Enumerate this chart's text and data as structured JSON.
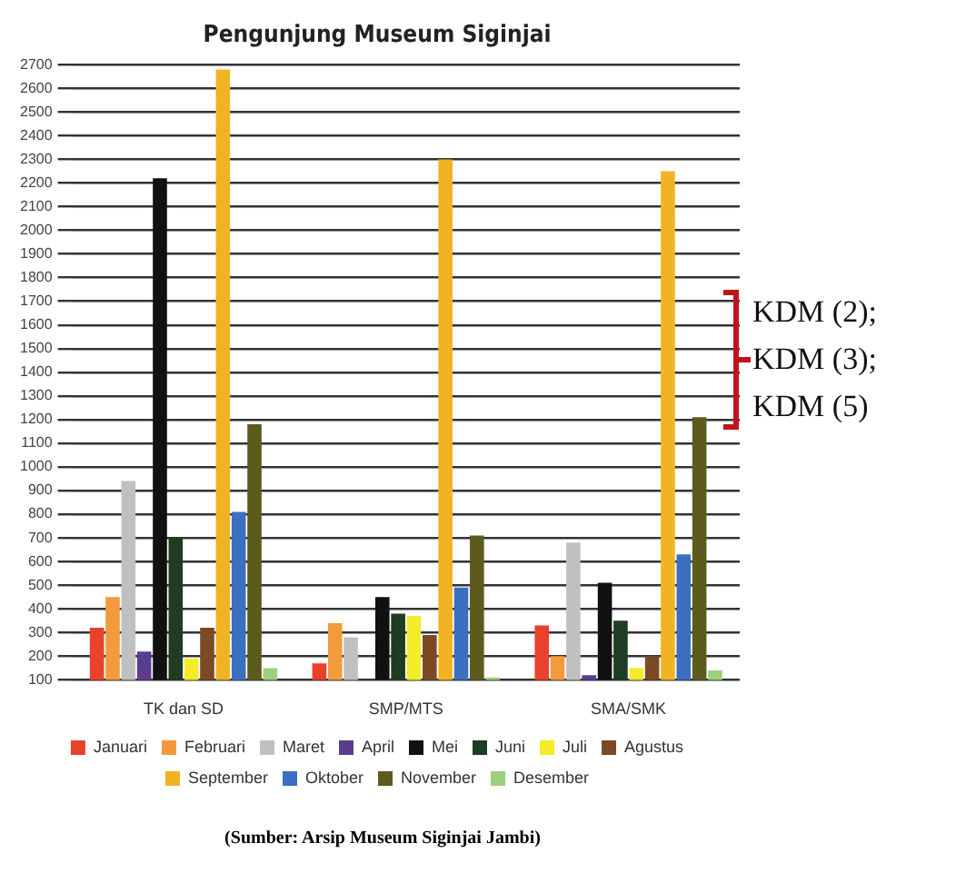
{
  "chart_data": {
    "type": "bar",
    "title": "Pengunjung Museum Siginjai",
    "categories": [
      "TK dan SD",
      "SMP/MTS",
      "SMA/SMK"
    ],
    "series": [
      {
        "name": "Januari",
        "color": "#e8412c",
        "values": [
          320,
          170,
          330
        ]
      },
      {
        "name": "Februari",
        "color": "#f39a3c",
        "values": [
          450,
          340,
          200
        ]
      },
      {
        "name": "Maret",
        "color": "#c0c0c0",
        "values": [
          940,
          280,
          680
        ]
      },
      {
        "name": "April",
        "color": "#5b3d8f",
        "values": [
          220,
          null,
          120
        ]
      },
      {
        "name": "Mei",
        "color": "#111111",
        "values": [
          2220,
          450,
          510
        ]
      },
      {
        "name": "Juni",
        "color": "#1e3d22",
        "values": [
          700,
          380,
          350
        ]
      },
      {
        "name": "Juli",
        "color": "#f2ec2a",
        "values": [
          190,
          370,
          150
        ]
      },
      {
        "name": "Agustus",
        "color": "#7b4a24",
        "values": [
          320,
          290,
          200
        ]
      },
      {
        "name": "September",
        "color": "#f0b323",
        "values": [
          2680,
          2300,
          2250
        ]
      },
      {
        "name": "Oktober",
        "color": "#3b6fc0",
        "values": [
          810,
          490,
          630
        ]
      },
      {
        "name": "November",
        "color": "#5d5a1e",
        "values": [
          1180,
          710,
          1210
        ]
      },
      {
        "name": "Desember",
        "color": "#9ccf7e",
        "values": [
          150,
          110,
          140
        ]
      }
    ],
    "ylim": [
      100,
      2700
    ],
    "yticks": [
      100,
      200,
      300,
      400,
      500,
      600,
      700,
      800,
      900,
      1000,
      1100,
      1200,
      1300,
      1400,
      1500,
      1600,
      1700,
      1800,
      1900,
      2000,
      2100,
      2200,
      2300,
      2400,
      2500,
      2600,
      2700
    ],
    "grid": "y",
    "legend": "bottom",
    "annotations": [
      "KDM (2);\nKDM (3);\nKDM (5)",
      "(Sumber: Arsip Museum Siginjai Jambi)"
    ]
  }
}
